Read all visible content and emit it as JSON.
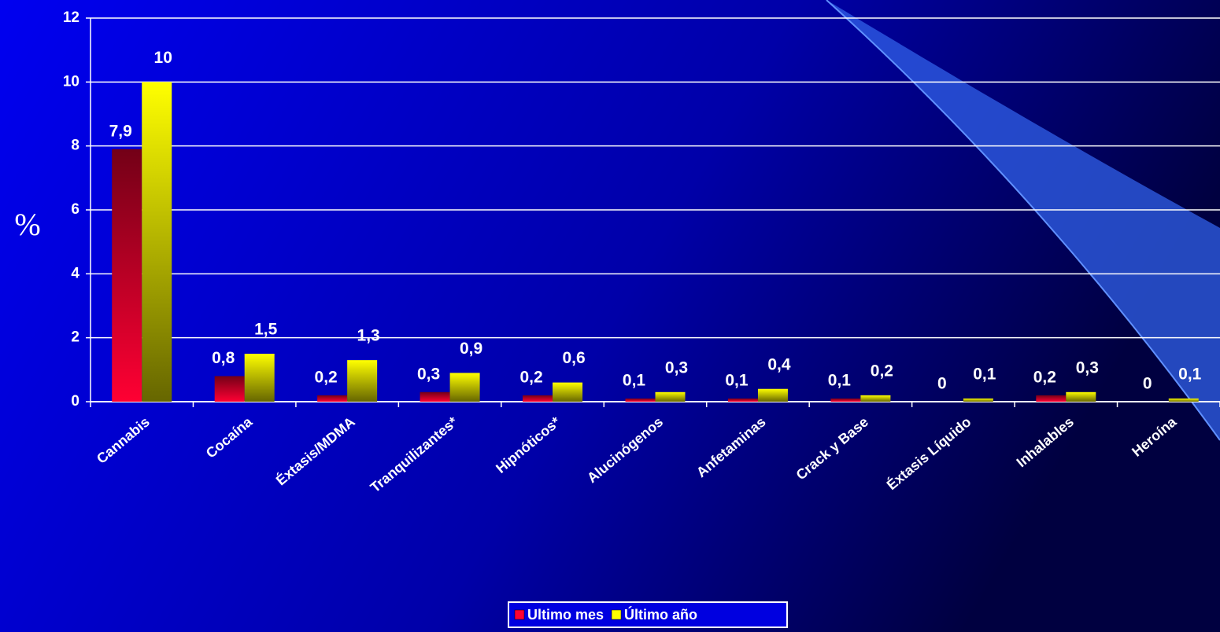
{
  "chart_data": {
    "type": "bar",
    "y_label": "%",
    "categories": [
      "Cannabis",
      "Cocaína",
      "Éxtasis/MDMA",
      "Tranquilizantes*",
      "Hipnóticos*",
      "Alucinógenos",
      "Anfetaminas",
      "Crack y Base",
      "Éxtasis Líquido",
      "Inhalables",
      "Heroína"
    ],
    "series": [
      {
        "name": "Ultimo mes",
        "color": "#ff0033",
        "values": [
          7.9,
          0.8,
          0.2,
          0.3,
          0.2,
          0.1,
          0.1,
          0.1,
          0,
          0.2,
          0
        ],
        "value_labels": [
          "7,9",
          "0,8",
          "0,2",
          "0,3",
          "0,2",
          "0,1",
          "0,1",
          "0,1",
          "0",
          "0,2",
          "0"
        ]
      },
      {
        "name": "Último año",
        "color": "#ffff00",
        "values": [
          10,
          1.5,
          1.3,
          0.9,
          0.6,
          0.3,
          0.4,
          0.2,
          0.1,
          0.3,
          0.1
        ],
        "value_labels": [
          "10",
          "1,5",
          "1,3",
          "0,9",
          "0,6",
          "0,3",
          "0,4",
          "0,2",
          "0,1",
          "0,3",
          "0,1"
        ]
      }
    ],
    "ylim": [
      0,
      12
    ],
    "yticks": [
      0,
      2,
      4,
      6,
      8,
      10,
      12
    ],
    "grid": true,
    "legend": "bottom"
  }
}
